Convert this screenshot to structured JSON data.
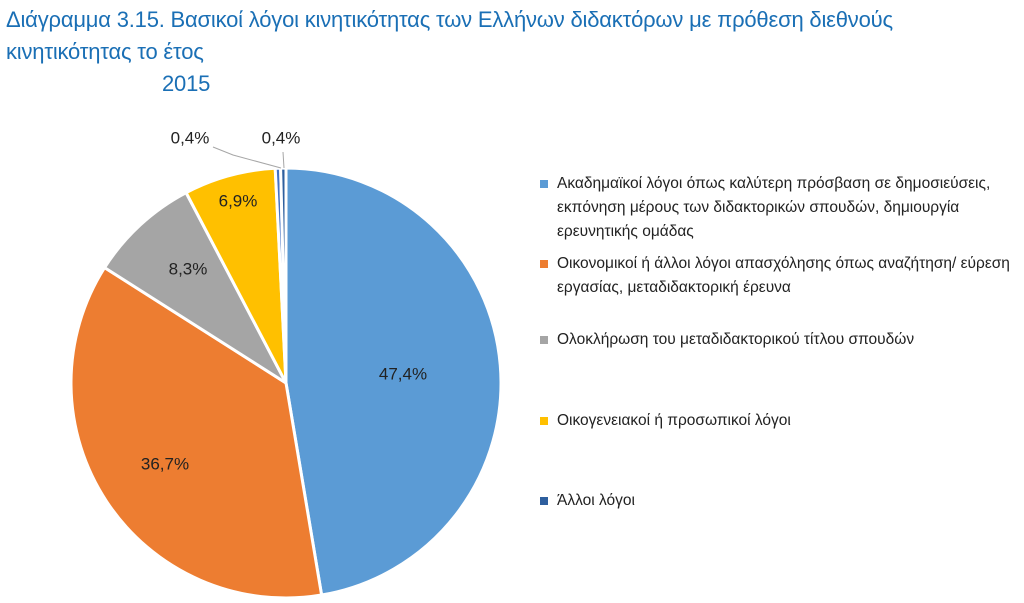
{
  "title_line1": "Διάγραμμα 3.15. Βασικοί λόγοι κινητικότητας των Ελλήνων διδακτόρων με πρόθεση διεθνούς κινητικότητας το έτος",
  "title_line2": "2015",
  "chart_data": {
    "type": "pie",
    "title": "Διάγραμμα 3.15. Βασικοί λόγοι κινητικότητας των Ελλήνων διδακτόρων με πρόθεση διεθνούς κινητικότητας το έτος 2015",
    "legend_position": "right",
    "slices": [
      {
        "name": "Ακαδημαϊκοί λόγοι όπως καλύτερη πρόσβαση σε δημοσιεύσεις, εκπόνηση μέρους των διδακτορικών σπουδών, δημιουργία ερευνητικής ομάδας",
        "value": 47.4,
        "label": "47,4%",
        "color": "#5b9bd5"
      },
      {
        "name": "Οικονομικοί ή άλλοι λόγοι απασχόλησης όπως αναζήτηση/ εύρεση εργασίας, μεταδιδακτορική έρευνα",
        "value": 36.7,
        "label": "36,7%",
        "color": "#ed7d31"
      },
      {
        "name": "Ολοκλήρωση του μεταδιδακτορικού τίτλου σπουδών",
        "value": 8.3,
        "label": "8,3%",
        "color": "#a5a5a5"
      },
      {
        "name": "Οικογενειακοί ή προσωπικοί λόγοι",
        "value": 6.9,
        "label": "6,9%",
        "color": "#ffc000"
      },
      {
        "name": "",
        "value": 0.4,
        "label": "0,4%",
        "color": "#4472c4"
      },
      {
        "name": "Άλλοι λόγοι",
        "value": 0.4,
        "label": "0,4%",
        "color": "#2e5f9e"
      }
    ]
  },
  "legend_items": [
    {
      "label": "Ακαδημαϊκοί λόγοι όπως καλύτερη πρόσβαση σε δημοσιεύσεις, εκπόνηση μέρους των διδακτορικών σπουδών, δημιουργία ερευνητικής ομάδας",
      "color": "#5b9bd5"
    },
    {
      "label": "Οικονομικοί ή άλλοι λόγοι απασχόλησης όπως αναζήτηση/ εύρεση εργασίας, μεταδιδακτορική έρευνα",
      "color": "#ed7d31"
    },
    {
      "label": "Ολοκλήρωση του μεταδιδακτορικού τίτλου σπουδών",
      "color": "#a5a5a5"
    },
    {
      "label": "Οικογενειακοί ή προσωπικοί λόγοι",
      "color": "#ffc000"
    },
    {
      "label": "Άλλοι λόγοι",
      "color": "#2e5f9e"
    }
  ]
}
